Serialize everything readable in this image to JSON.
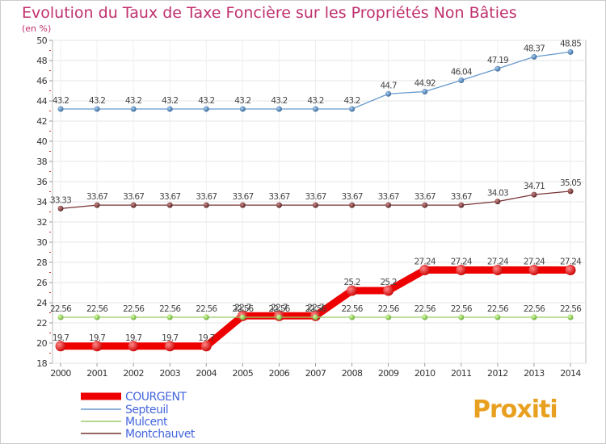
{
  "chart_data": {
    "type": "line",
    "title": "Evolution du Taux de Taxe Foncière sur les Propriétés Non Bâties",
    "subtitle": "(en %)",
    "categories": [
      "2000",
      "2001",
      "2002",
      "2003",
      "2004",
      "2005",
      "2006",
      "2007",
      "2008",
      "2009",
      "2010",
      "2011",
      "2012",
      "2013",
      "2014"
    ],
    "ylim": [
      18,
      50
    ],
    "yticks": [
      18,
      20,
      22,
      24,
      26,
      28,
      30,
      32,
      34,
      36,
      38,
      40,
      42,
      44,
      46,
      48,
      50
    ],
    "grid": true,
    "legend_position": "bottom-left",
    "series": [
      {
        "name": "COURGENT",
        "color": "#ee0000",
        "values": [
          19.7,
          19.7,
          19.7,
          19.7,
          19.7,
          22.7,
          22.7,
          22.7,
          25.2,
          25.2,
          27.24,
          27.24,
          27.24,
          27.24,
          27.24
        ],
        "labels": [
          "19.7",
          "19.7",
          "19.7",
          "19.7",
          "19.7",
          "22.7",
          "22.7",
          "22.7",
          "25.2",
          "25.2",
          "27.24",
          "27.24",
          "27.24",
          "27.24",
          "27.24"
        ]
      },
      {
        "name": "Septeuil",
        "color": "#6699cc",
        "values": [
          43.2,
          43.2,
          43.2,
          43.2,
          43.2,
          43.2,
          43.2,
          43.2,
          43.2,
          44.7,
          44.92,
          46.04,
          47.19,
          48.37,
          48.85
        ],
        "labels": [
          "43.2",
          "43.2",
          "43.2",
          "43.2",
          "43.2",
          "43.2",
          "43.2",
          "43.2",
          "43.2",
          "44.7",
          "44.92",
          "46.04",
          "47.19",
          "48.37",
          "48.85"
        ]
      },
      {
        "name": "Mulcent",
        "color": "#99cc66",
        "values": [
          22.56,
          22.56,
          22.56,
          22.56,
          22.56,
          22.56,
          22.56,
          22.56,
          22.56,
          22.56,
          22.56,
          22.56,
          22.56,
          22.56,
          22.56
        ],
        "labels": [
          "22.56",
          "22.56",
          "22.56",
          "22.56",
          "22.56",
          "22.56",
          "22.56",
          "22.56",
          "22.56",
          "22.56",
          "22.56",
          "22.56",
          "22.56",
          "22.56",
          "22.56"
        ]
      },
      {
        "name": "Montchauvet",
        "color": "#773333",
        "values": [
          33.33,
          33.67,
          33.67,
          33.67,
          33.67,
          33.67,
          33.67,
          33.67,
          33.67,
          33.67,
          33.67,
          33.67,
          34.03,
          34.71,
          35.05
        ],
        "labels": [
          "33.33",
          "33.67",
          "33.67",
          "33.67",
          "33.67",
          "33.67",
          "33.67",
          "33.67",
          "33.67",
          "33.67",
          "33.67",
          "33.67",
          "34.03",
          "34.71",
          "35.05"
        ]
      }
    ]
  },
  "logo": {
    "text": "Proxiti"
  }
}
